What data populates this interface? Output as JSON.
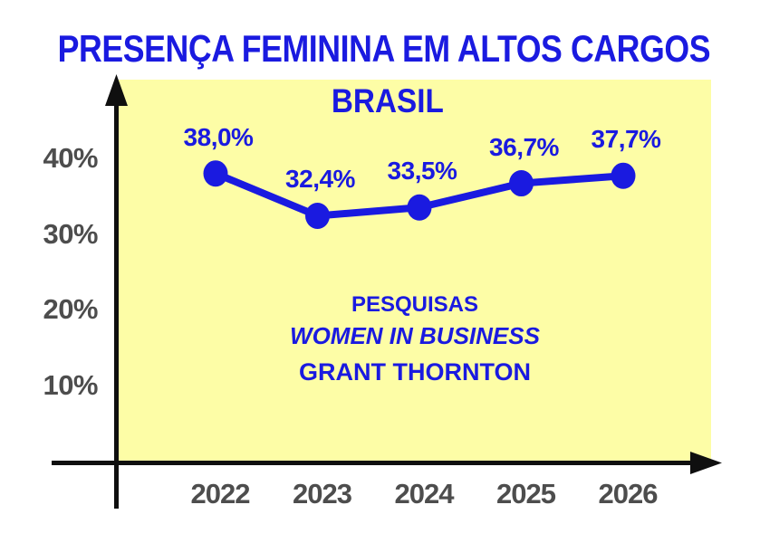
{
  "title": "PRESENÇA FEMININA EM ALTOS CARGOS",
  "subtitle": "BRASIL",
  "annotation": {
    "line1": "PESQUISAS",
    "line2": "WOMEN IN BUSINESS",
    "line3": "GRANT THORNTON"
  },
  "colors": {
    "blue": "#1A1AE0",
    "yellow": "#FDFDA6",
    "axis_label": "#4D4D4D",
    "axis_line": "#0F0F0F",
    "background": "#FFFFFF"
  },
  "y_axis": {
    "tick_labels": [
      "40%",
      "30%",
      "20%",
      "10%"
    ],
    "tick_values": [
      40,
      30,
      20,
      10
    ]
  },
  "chart_data": {
    "type": "line",
    "title": "PRESENÇA FEMININA EM ALTOS CARGOS",
    "subtitle": "BRASIL",
    "categories": [
      "2022",
      "2023",
      "2024",
      "2025",
      "2026"
    ],
    "values": [
      38.0,
      32.4,
      33.5,
      36.7,
      37.7
    ],
    "point_labels": [
      "38,0%",
      "32,4%",
      "33,5%",
      "36,7%",
      "37,7%"
    ],
    "xlabel": "",
    "ylabel": "",
    "ylim": [
      0,
      45
    ],
    "y_ticks": [
      10,
      20,
      30,
      40
    ],
    "grid": false,
    "legend": "none",
    "series_color": "#1A1AE0",
    "marker": "circle",
    "plot_background": "#FDFDA6",
    "annotations": [
      "PESQUISAS",
      "WOMEN IN BUSINESS",
      "GRANT THORNTON"
    ]
  }
}
